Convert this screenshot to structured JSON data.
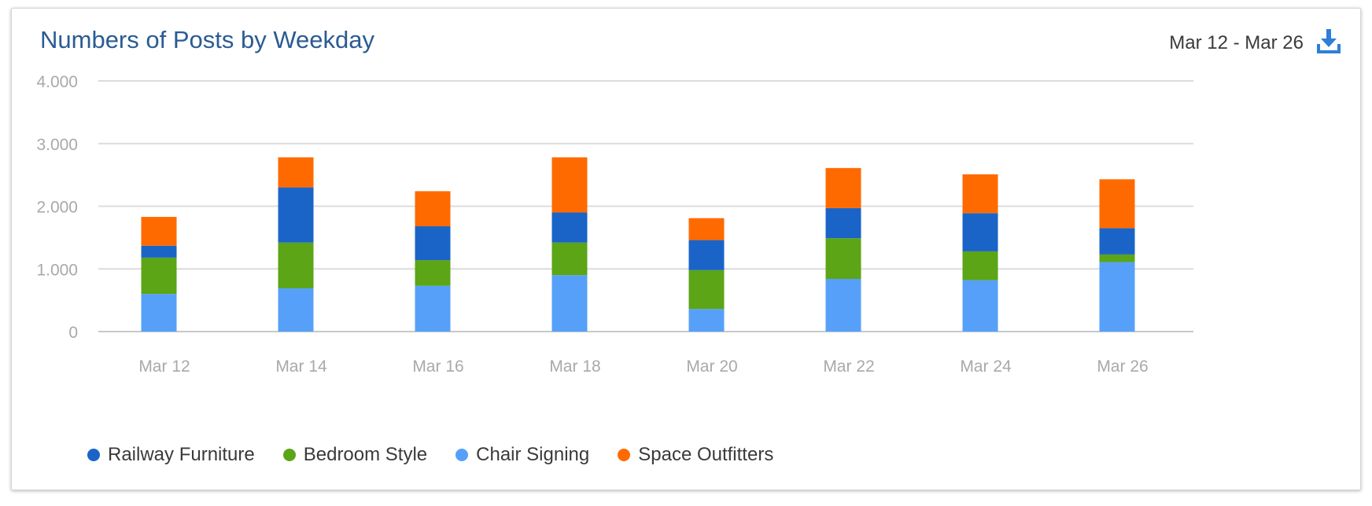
{
  "header": {
    "title": "Numbers of Posts by Weekday",
    "date_range": "Mar 12 - Mar 26",
    "download_icon": "download-icon"
  },
  "chart_data": {
    "type": "bar",
    "stacked": true,
    "title": "Numbers of Posts by Weekday",
    "xlabel": "",
    "ylabel": "",
    "ylim": [
      0,
      4000
    ],
    "yticks": [
      0,
      1000,
      2000,
      3000,
      4000
    ],
    "ytick_labels": [
      "0",
      "1.000",
      "2.000",
      "3.000",
      "4.000"
    ],
    "grid": true,
    "legend_position": "bottom-left",
    "categories": [
      "Mar 12",
      "Mar 14",
      "Mar 16",
      "Mar 18",
      "Mar 20",
      "Mar 22",
      "Mar 24",
      "Mar 26"
    ],
    "series": [
      {
        "name": "Chair Signing",
        "color": "#56a0fa",
        "values": [
          600,
          690,
          730,
          900,
          360,
          840,
          820,
          1110
        ]
      },
      {
        "name": "Bedroom Style",
        "color": "#5ba517",
        "values": [
          580,
          730,
          410,
          520,
          620,
          650,
          460,
          120
        ]
      },
      {
        "name": "Railway Furniture",
        "color": "#1a64c8",
        "values": [
          190,
          880,
          540,
          480,
          480,
          480,
          610,
          420
        ]
      },
      {
        "name": "Space Outfitters",
        "color": "#ff6a00",
        "values": [
          460,
          480,
          560,
          880,
          350,
          640,
          620,
          780
        ]
      }
    ]
  },
  "legend": {
    "items": [
      {
        "label": "Railway Furniture",
        "color": "#1a64c8"
      },
      {
        "label": "Bedroom Style",
        "color": "#5ba517"
      },
      {
        "label": "Chair Signing",
        "color": "#56a0fa"
      },
      {
        "label": "Space Outfitters",
        "color": "#ff6a00"
      }
    ]
  }
}
